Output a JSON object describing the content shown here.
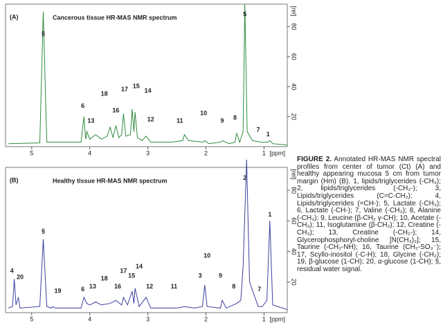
{
  "chart_data": [
    {
      "type": "line",
      "panel": "(A)",
      "title": "Cancerous tissue HR-MAS NMR spectrum",
      "color": "#2e8b3e",
      "xlabel": "[ppm]",
      "ylabel": "[rel]",
      "xlim": [
        5.45,
        0.6
      ],
      "xticks": [
        5,
        4,
        3,
        2,
        1
      ],
      "ylim": [
        0,
        95
      ],
      "yticks": [
        20,
        40,
        60,
        80
      ],
      "x": [
        5.4,
        4.86,
        4.8,
        4.74,
        4.5,
        4.15,
        4.1,
        4.07,
        4.05,
        4.0,
        3.9,
        3.8,
        3.7,
        3.65,
        3.6,
        3.55,
        3.5,
        3.45,
        3.42,
        3.38,
        3.3,
        3.27,
        3.24,
        3.22,
        3.18,
        3.1,
        3.03,
        2.95,
        2.6,
        2.4,
        2.37,
        2.3,
        2.05,
        2.02,
        1.95,
        1.75,
        1.72,
        1.6,
        1.5,
        1.47,
        1.42,
        1.36,
        1.33,
        1.29,
        1.2,
        1.05,
        1.03,
        0.93,
        0.9,
        0.85,
        0.6
      ],
      "values": [
        2,
        2.5,
        90,
        3,
        3,
        3,
        20,
        5,
        10,
        5,
        8,
        5,
        7,
        13,
        6,
        14,
        6,
        8,
        22,
        7,
        8,
        25,
        10,
        23,
        6,
        4,
        7,
        3,
        3,
        4,
        8,
        4,
        3,
        4,
        2,
        3,
        4,
        2,
        3,
        9,
        3,
        10,
        95,
        10,
        4,
        3,
        3,
        3,
        4,
        2,
        1
      ],
      "annotations": [
        {
          "text": "§",
          "x": 4.8,
          "y": 75
        },
        {
          "text": "5",
          "x": 1.33,
          "y": 88
        },
        {
          "text": "6",
          "x": 4.12,
          "y": 27
        },
        {
          "text": "13",
          "x": 3.98,
          "y": 17
        },
        {
          "text": "18",
          "x": 3.75,
          "y": 35
        },
        {
          "text": "16",
          "x": 3.55,
          "y": 24
        },
        {
          "text": "17",
          "x": 3.4,
          "y": 38
        },
        {
          "text": "15",
          "x": 3.2,
          "y": 40
        },
        {
          "text": "14",
          "x": 3.0,
          "y": 37
        },
        {
          "text": "12",
          "x": 2.95,
          "y": 18
        },
        {
          "text": "11",
          "x": 2.45,
          "y": 17
        },
        {
          "text": "10",
          "x": 2.04,
          "y": 22
        },
        {
          "text": "9",
          "x": 1.72,
          "y": 17
        },
        {
          "text": "8",
          "x": 1.5,
          "y": 19
        },
        {
          "text": "7",
          "x": 1.1,
          "y": 11
        },
        {
          "text": "1",
          "x": 0.93,
          "y": 8
        }
      ]
    },
    {
      "type": "line",
      "panel": "(B)",
      "title": "Healthy tissue HR-MAS NMR spectrum",
      "color": "#3b3f9c",
      "xlabel": "[ppm]",
      "ylabel": "[rel]",
      "xlim": [
        5.45,
        0.6
      ],
      "xticks": [
        5,
        4,
        3,
        2,
        1
      ],
      "ylim": [
        0,
        95
      ],
      "yticks": [
        20,
        40,
        60,
        80
      ],
      "x": [
        5.4,
        5.33,
        5.3,
        5.27,
        5.23,
        5.2,
        4.86,
        4.8,
        4.74,
        4.66,
        4.64,
        4.6,
        4.15,
        4.1,
        4.05,
        4.0,
        3.9,
        3.8,
        3.65,
        3.55,
        3.45,
        3.42,
        3.35,
        3.27,
        3.24,
        3.22,
        3.15,
        3.03,
        2.95,
        2.5,
        2.37,
        2.2,
        2.06,
        2.02,
        1.98,
        1.75,
        1.72,
        1.65,
        1.47,
        1.4,
        1.36,
        1.3,
        1.25,
        1.1,
        1.03,
        0.95,
        0.9,
        0.85,
        0.6
      ],
      "values": [
        3,
        4,
        22,
        5,
        10,
        3,
        4,
        48,
        4,
        3,
        4,
        3,
        3,
        10,
        6,
        5,
        7,
        5,
        6,
        8,
        5,
        10,
        5,
        14,
        6,
        16,
        4,
        10,
        3,
        3,
        4,
        3,
        4,
        18,
        4,
        3,
        8,
        3,
        6,
        8,
        30,
        100,
        20,
        4,
        4,
        8,
        60,
        5,
        2
      ],
      "annotations": [
        {
          "text": "2",
          "x": 1.33,
          "y": 88
        },
        {
          "text": "1",
          "x": 0.9,
          "y": 64
        },
        {
          "text": "4",
          "x": 5.34,
          "y": 27
        },
        {
          "text": "20",
          "x": 5.2,
          "y": 23
        },
        {
          "text": "§",
          "x": 4.8,
          "y": 53
        },
        {
          "text": "19",
          "x": 4.55,
          "y": 14
        },
        {
          "text": "6",
          "x": 4.12,
          "y": 15
        },
        {
          "text": "13",
          "x": 3.95,
          "y": 17
        },
        {
          "text": "18",
          "x": 3.75,
          "y": 22
        },
        {
          "text": "16",
          "x": 3.52,
          "y": 17
        },
        {
          "text": "17",
          "x": 3.42,
          "y": 27
        },
        {
          "text": "15",
          "x": 3.28,
          "y": 24
        },
        {
          "text": "14",
          "x": 3.15,
          "y": 30
        },
        {
          "text": "12",
          "x": 2.97,
          "y": 17
        },
        {
          "text": "11",
          "x": 2.55,
          "y": 17
        },
        {
          "text": "3",
          "x": 2.1,
          "y": 24
        },
        {
          "text": "10",
          "x": 1.98,
          "y": 37
        },
        {
          "text": "9",
          "x": 1.75,
          "y": 24
        },
        {
          "text": "8",
          "x": 1.52,
          "y": 17
        },
        {
          "text": "7",
          "x": 1.08,
          "y": 15
        }
      ]
    }
  ],
  "caption": {
    "label": "FIGURE 2.",
    "text": "Annotated HR-MAS NMR spectral profiles from center of tumor (Ct) (A) and healthy appearing mucosa 5 cm from tumor margin (Hm) (B). 1, lipids/triglycerides (-CH₃); 2, lipids/triglycerides (-CH₂-); 3, Lipids/triglycerides (C=C-CH₂); 4, Lipids/triglycerides (=CH-); 5, Lactate (-CH₃); 6, Lactate (-CH-); 7, Valine (-CH₃); 8, Alanine (-CH₃); 9, Leucine (β-CH₂ γ-CH); 10, Acetate (-CH₃); 11, Isoglutamine (β-CH₂); 12, Creatine (-CH₃); 13, Creatine (-CH₂-); 14, Glycerophosphoryl-choline [N(CH₃)₃]; 15, Taurine (-CH₂-NH); 16, Taurine (CH₂-SO₃⁻); 17, Scyllo-inositol (-C-H); 18, Glycine (-CH₂); 19, β-glucose (1-CH); 20, α-glucose (1-CH); §, residual water signal."
  }
}
